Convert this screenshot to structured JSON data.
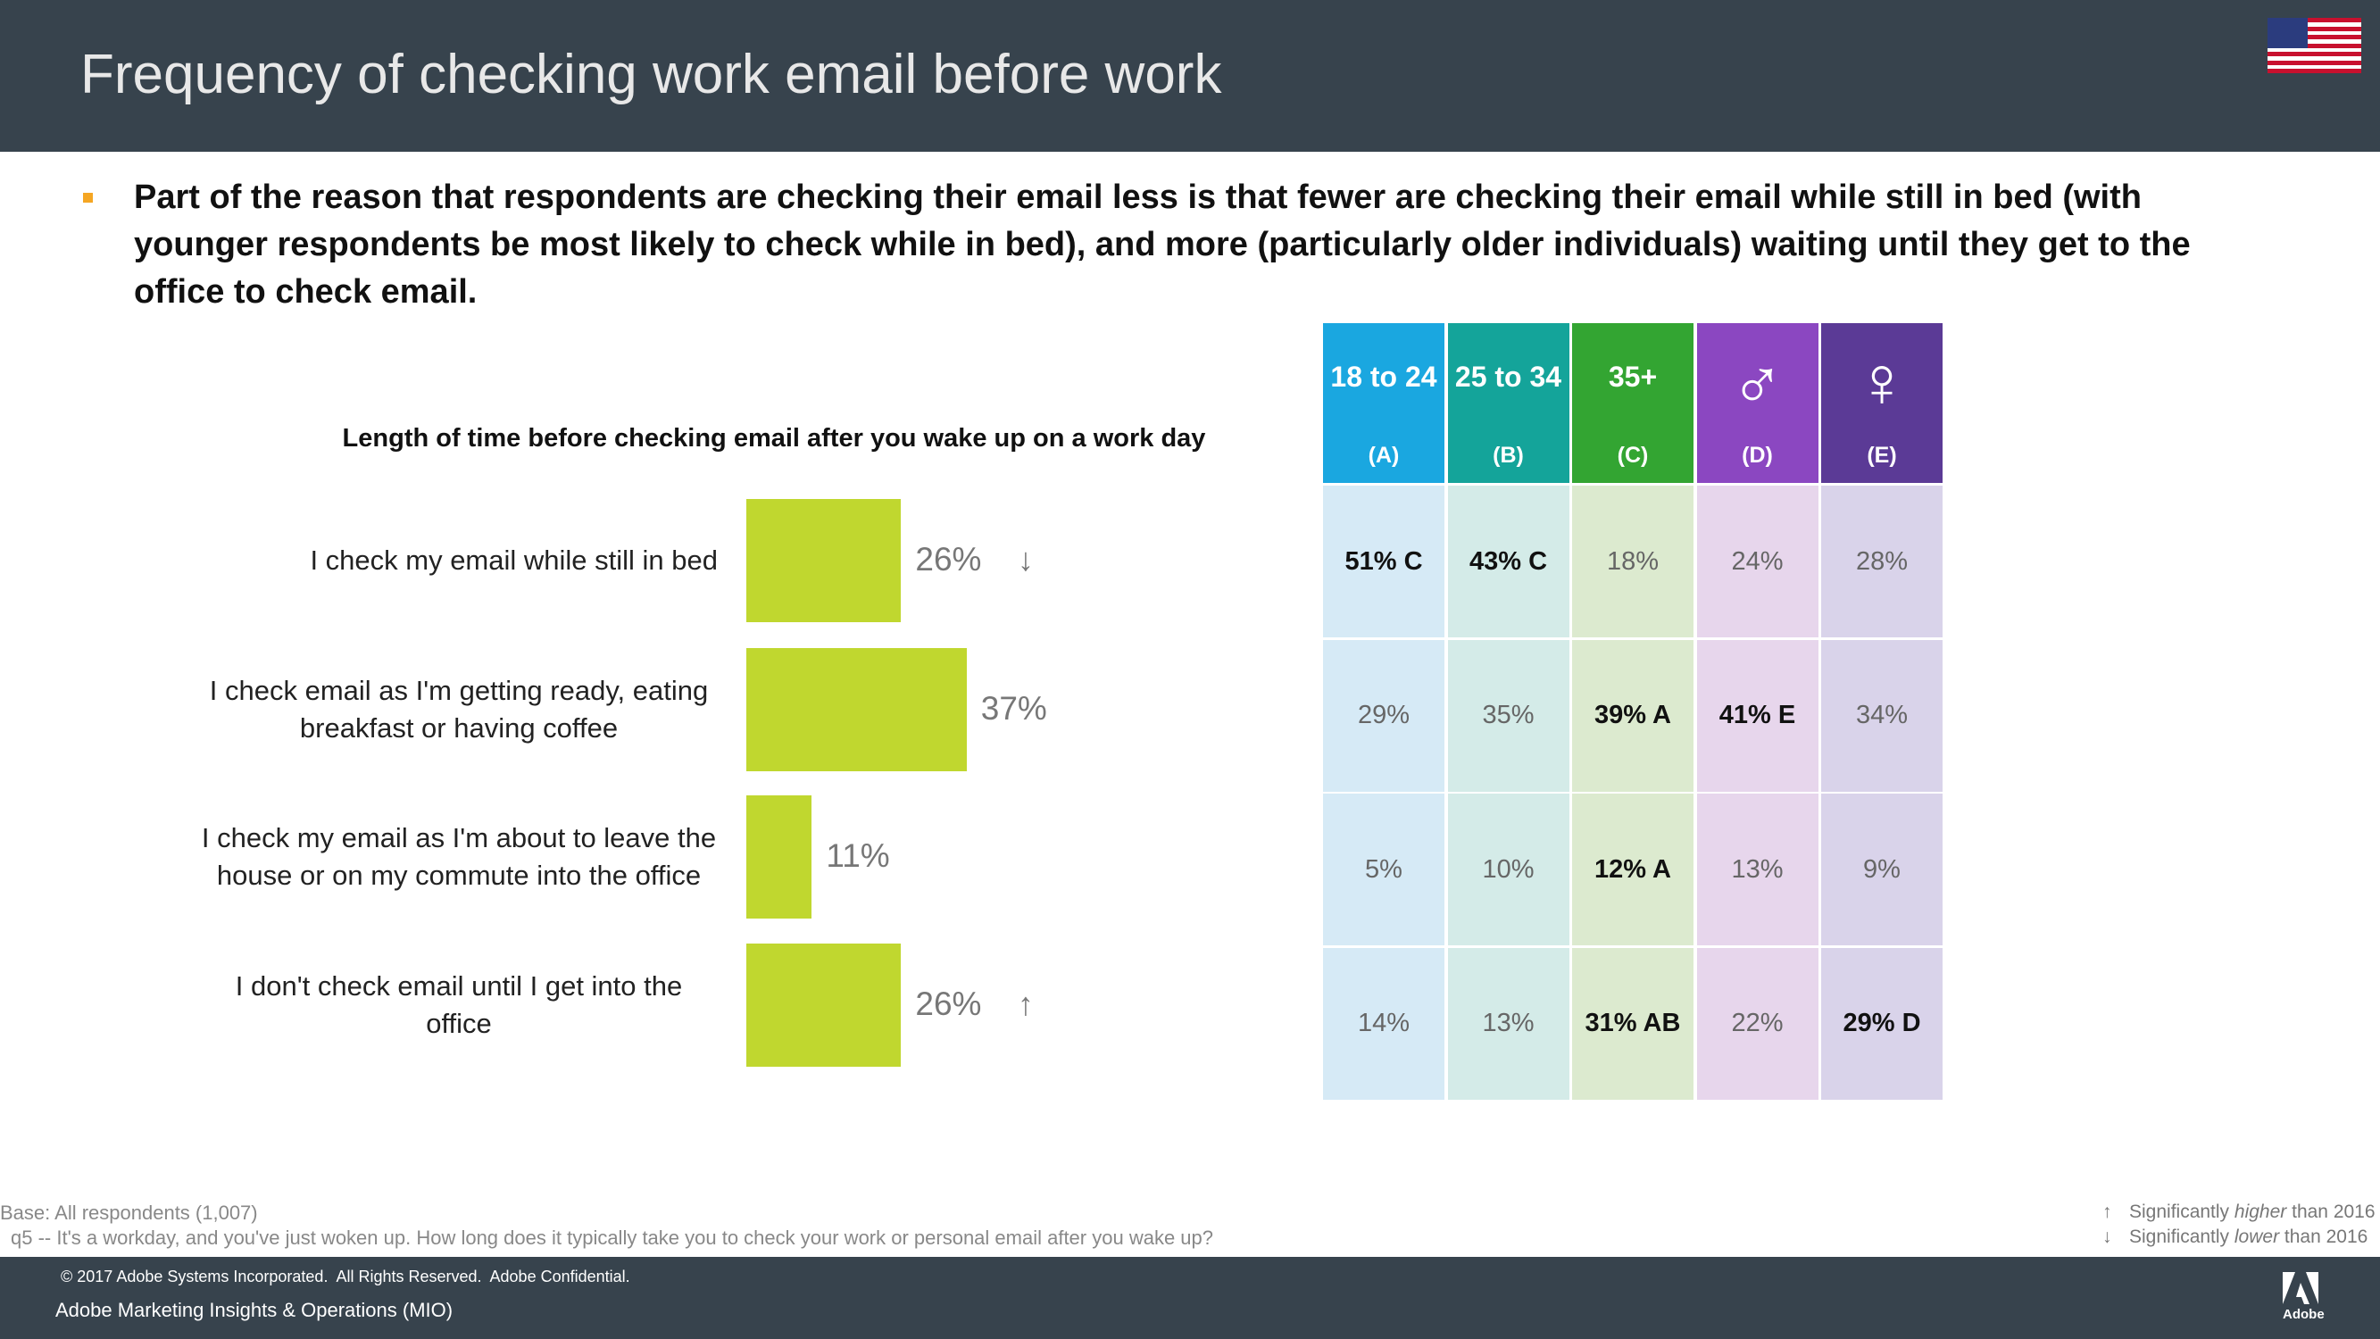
{
  "header": {
    "title": "Frequency of checking work email before work"
  },
  "bullet": "Part of the reason that respondents are checking their email less is that fewer are checking their email while still in bed (with younger respondents be most likely to check while in bed), and more (particularly older individuals) waiting until they get to the office to check email.",
  "chart_data": {
    "type": "bar",
    "orientation": "horizontal",
    "title": "Length of time before checking email after you wake up on a work day",
    "categories": [
      "I check my email while still in bed",
      "I check email as I'm getting ready, eating breakfast or having coffee",
      "I check my email as I'm about to leave the house or on my commute into the office",
      "I don't check email until I get into the office"
    ],
    "values": [
      26,
      37,
      11,
      26
    ],
    "value_labels": [
      "26%",
      "37%",
      "11%",
      "26%"
    ],
    "significance": [
      "↓",
      null,
      null,
      "↑"
    ],
    "color": "#c0d72f"
  },
  "table": {
    "columns": [
      {
        "label": "18 to 24",
        "code": "(A)",
        "header_color": "#1aa7e0",
        "cell_color": "#d6eaf6"
      },
      {
        "label": "25 to 34",
        "code": "(B)",
        "header_color": "#14a49a",
        "cell_color": "#d4ebe8"
      },
      {
        "label": "35+",
        "code": "(C)",
        "header_color": "#33a532",
        "cell_color": "#dceacf"
      },
      {
        "label": "♂",
        "code": "(D)",
        "header_color": "#8b47c1",
        "cell_color": "#e7d6ec"
      },
      {
        "label": "♀",
        "code": "(E)",
        "header_color": "#5b3a96",
        "cell_color": "#d9d3ea"
      }
    ],
    "rows": [
      [
        "51% C",
        "43% C",
        "18%",
        "24%",
        "28%"
      ],
      [
        "29%",
        "35%",
        "39% A",
        "41% E",
        "34%"
      ],
      [
        "5%",
        "10%",
        "12% A",
        "13%",
        "9%"
      ],
      [
        "14%",
        "13%",
        "31% AB",
        "22%",
        "29% D"
      ]
    ]
  },
  "footer": {
    "base": "Base: All respondents (1,007)",
    "question": "q5 -- It's a workday, and you've just woken up. How long does it typically take you to check your work or personal email after you wake up?",
    "legend": [
      {
        "arrow": "↑",
        "parts": [
          "Significantly ",
          "higher",
          " than 2016"
        ]
      },
      {
        "arrow": "↓",
        "parts": [
          "Significantly ",
          "lower",
          " than 2016"
        ]
      }
    ],
    "copyright": "© 2017 Adobe Systems Incorporated.  All Rights Reserved.  Adobe Confidential.",
    "org": "Adobe Marketing Insights & Operations (MIO)",
    "logo": "Adobe"
  }
}
